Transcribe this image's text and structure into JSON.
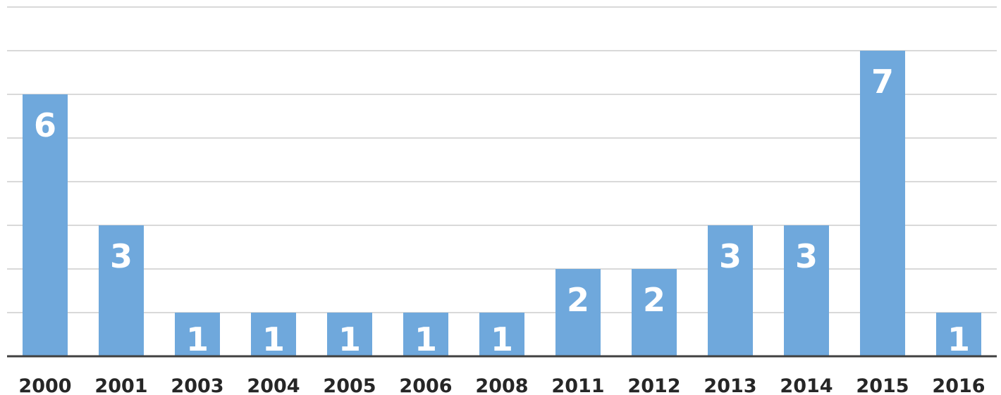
{
  "chart_data": {
    "type": "bar",
    "title": "",
    "xlabel": "",
    "ylabel": "",
    "categories": [
      "2000",
      "2001",
      "2003",
      "2004",
      "2005",
      "2006",
      "2008",
      "2011",
      "2012",
      "2013",
      "2014",
      "2015",
      "2016"
    ],
    "values": [
      6,
      3,
      1,
      1,
      1,
      1,
      1,
      2,
      2,
      3,
      3,
      7,
      1
    ],
    "ylim": [
      0,
      8
    ],
    "grid": true,
    "legend": "none",
    "bar_color": "#6fa8dc",
    "label_color": "#ffffff",
    "axis_color": "#404040",
    "grid_color": "#d9d9d9"
  }
}
